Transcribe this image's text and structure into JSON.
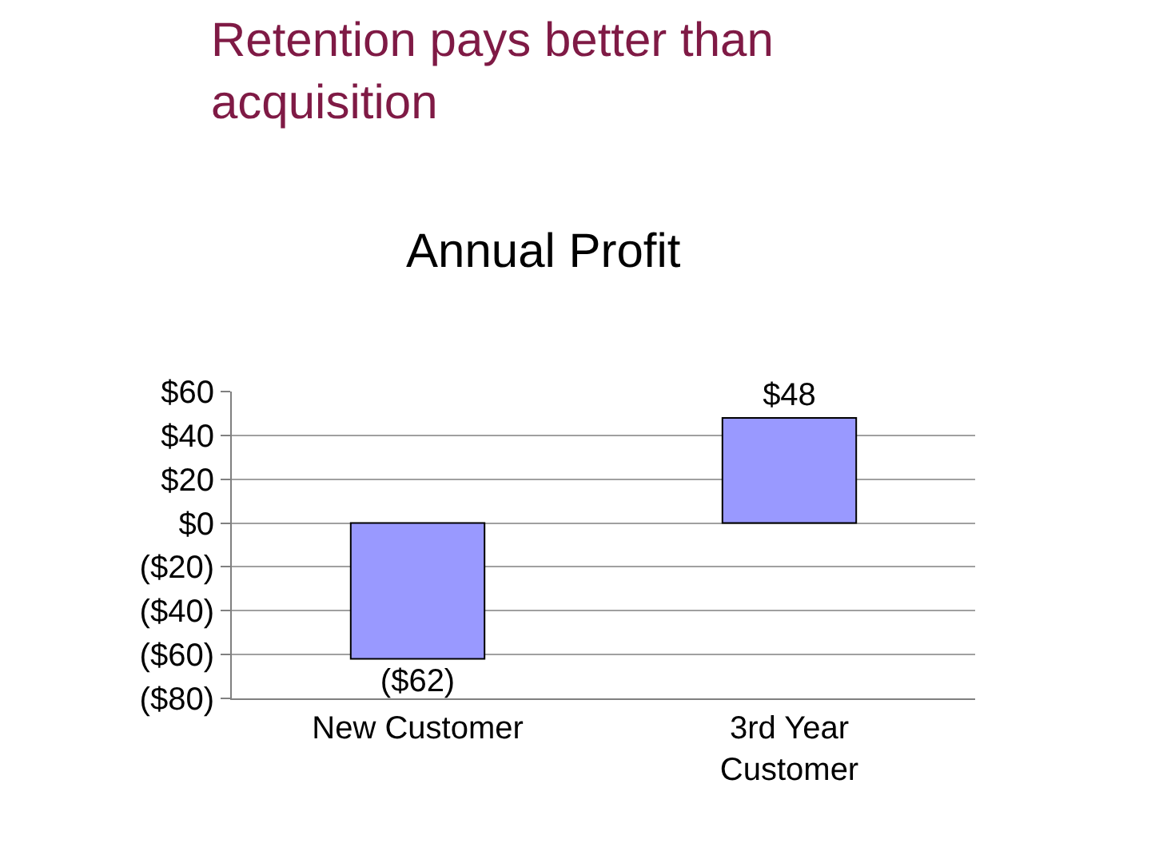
{
  "chart_data": {
    "type": "bar",
    "title": "Retention pays better than acquisition",
    "subtitle": "Annual Profit",
    "categories": [
      "New Customer",
      "3rd Year Customer"
    ],
    "values": [
      -62,
      48
    ],
    "value_labels": [
      "($62)",
      "$48"
    ],
    "color": "#9999ff",
    "ylim": [
      -80,
      60
    ],
    "yticks": [
      {
        "value": -80,
        "label": "($80)"
      },
      {
        "value": -60,
        "label": "($60)"
      },
      {
        "value": -40,
        "label": "($40)"
      },
      {
        "value": -20,
        "label": "($20)"
      },
      {
        "value": 0,
        "label": "$0"
      },
      {
        "value": 20,
        "label": "$20"
      },
      {
        "value": 40,
        "label": "$40"
      },
      {
        "value": 60,
        "label": "$60"
      }
    ],
    "grid": "y"
  }
}
